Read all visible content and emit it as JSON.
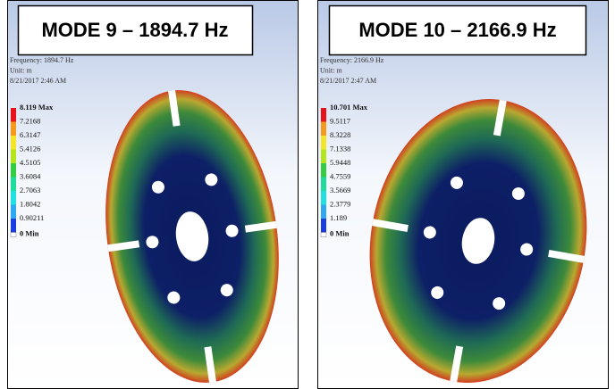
{
  "panels": [
    {
      "header": "MODE 9 – 1894.7 Hz",
      "info": [
        "Frequency: 1894.7 Hz",
        "Unit: m",
        "8/21/2017 2:46 AM"
      ],
      "legend": [
        "8.119 Max",
        "7.2168",
        "6.3147",
        "5.4126",
        "4.5105",
        "3.6084",
        "2.7063",
        "1.8042",
        "0.90211",
        "0 Min"
      ]
    },
    {
      "header": "MODE 10 – 2166.9 Hz",
      "info": [
        "Frequency: 2166.9 Hz",
        "Unit: m",
        "8/21/2017 2:47 AM"
      ],
      "legend": [
        "10.701 Max",
        "9.5117",
        "8.3228",
        "7.1338",
        "5.9448",
        "4.7559",
        "3.5669",
        "2.3779",
        "1.189",
        "0 Min"
      ]
    }
  ]
}
